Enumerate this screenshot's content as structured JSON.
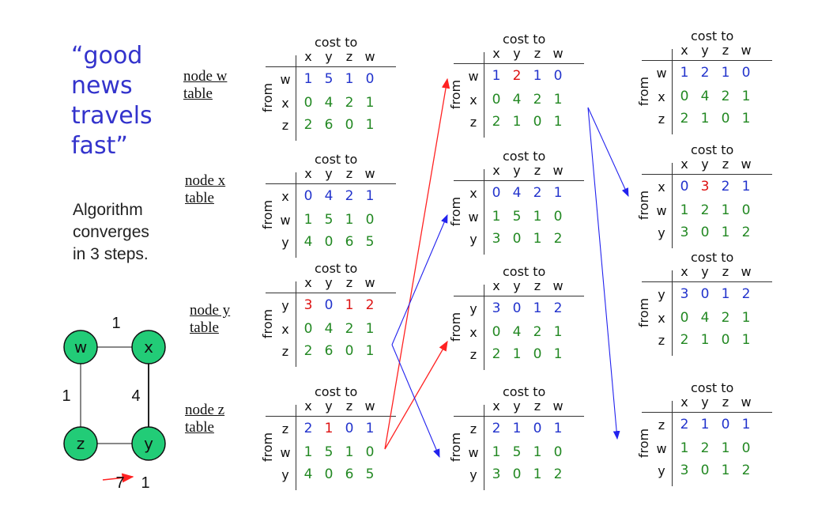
{
  "slogan": {
    "line1": "“good",
    "line2": "news",
    "line3": "travels",
    "line4": "fast”"
  },
  "converge": {
    "line1": "Algorithm",
    "line2": "converges",
    "line3": "in 3 steps."
  },
  "node_labels": {
    "w": {
      "l1": "node w",
      "l2": "table"
    },
    "x": {
      "l1": "node x",
      "l2": "table"
    },
    "y": {
      "l1": "node y",
      "l2": "table"
    },
    "z": {
      "l1": "node z",
      "l2": "table"
    }
  },
  "table_header": {
    "cost_to": "cost to",
    "from": "from",
    "cols": [
      "x",
      "y",
      "z",
      "w"
    ]
  },
  "colors": {
    "blue": "#2233cc",
    "green": "#228822",
    "red": "#dd1111",
    "arrow_red": "#ff2222",
    "arrow_blue": "#2222ee",
    "node_fill": "#22cc77"
  },
  "tables": [
    {
      "id": "t0w",
      "rows": [
        {
          "label": "w",
          "vals": [
            "1",
            "5",
            "1",
            "0"
          ],
          "colors": [
            "b",
            "b",
            "b",
            "b"
          ]
        },
        {
          "label": "x",
          "vals": [
            "0",
            "4",
            "2",
            "1"
          ],
          "colors": [
            "g",
            "g",
            "g",
            "g"
          ]
        },
        {
          "label": "z",
          "vals": [
            "2",
            "6",
            "0",
            "1"
          ],
          "colors": [
            "g",
            "g",
            "g",
            "g"
          ]
        }
      ]
    },
    {
      "id": "t0x",
      "rows": [
        {
          "label": "x",
          "vals": [
            "0",
            "4",
            "2",
            "1"
          ],
          "colors": [
            "b",
            "b",
            "b",
            "b"
          ]
        },
        {
          "label": "w",
          "vals": [
            "1",
            "5",
            "1",
            "0"
          ],
          "colors": [
            "g",
            "g",
            "g",
            "g"
          ]
        },
        {
          "label": "y",
          "vals": [
            "4",
            "0",
            "6",
            "5"
          ],
          "colors": [
            "g",
            "g",
            "g",
            "g"
          ]
        }
      ]
    },
    {
      "id": "t0y",
      "rows": [
        {
          "label": "y",
          "vals": [
            "3",
            "0",
            "1",
            "2"
          ],
          "colors": [
            "r",
            "b",
            "r",
            "r"
          ]
        },
        {
          "label": "x",
          "vals": [
            "0",
            "4",
            "2",
            "1"
          ],
          "colors": [
            "g",
            "g",
            "g",
            "g"
          ]
        },
        {
          "label": "z",
          "vals": [
            "2",
            "6",
            "0",
            "1"
          ],
          "colors": [
            "g",
            "g",
            "g",
            "g"
          ]
        }
      ]
    },
    {
      "id": "t0z",
      "rows": [
        {
          "label": "z",
          "vals": [
            "2",
            "1",
            "0",
            "1"
          ],
          "colors": [
            "b",
            "r",
            "b",
            "b"
          ]
        },
        {
          "label": "w",
          "vals": [
            "1",
            "5",
            "1",
            "0"
          ],
          "colors": [
            "g",
            "g",
            "g",
            "g"
          ]
        },
        {
          "label": "y",
          "vals": [
            "4",
            "0",
            "6",
            "5"
          ],
          "colors": [
            "g",
            "g",
            "g",
            "g"
          ]
        }
      ]
    },
    {
      "id": "t1w",
      "rows": [
        {
          "label": "w",
          "vals": [
            "1",
            "2",
            "1",
            "0"
          ],
          "colors": [
            "b",
            "r",
            "b",
            "b"
          ]
        },
        {
          "label": "x",
          "vals": [
            "0",
            "4",
            "2",
            "1"
          ],
          "colors": [
            "g",
            "g",
            "g",
            "g"
          ]
        },
        {
          "label": "z",
          "vals": [
            "2",
            "1",
            "0",
            "1"
          ],
          "colors": [
            "g",
            "g",
            "g",
            "g"
          ]
        }
      ]
    },
    {
      "id": "t1x",
      "rows": [
        {
          "label": "x",
          "vals": [
            "0",
            "4",
            "2",
            "1"
          ],
          "colors": [
            "b",
            "b",
            "b",
            "b"
          ]
        },
        {
          "label": "w",
          "vals": [
            "1",
            "5",
            "1",
            "0"
          ],
          "colors": [
            "g",
            "g",
            "g",
            "g"
          ]
        },
        {
          "label": "y",
          "vals": [
            "3",
            "0",
            "1",
            "2"
          ],
          "colors": [
            "g",
            "g",
            "g",
            "g"
          ]
        }
      ]
    },
    {
      "id": "t1y",
      "rows": [
        {
          "label": "y",
          "vals": [
            "3",
            "0",
            "1",
            "2"
          ],
          "colors": [
            "b",
            "b",
            "b",
            "b"
          ]
        },
        {
          "label": "x",
          "vals": [
            "0",
            "4",
            "2",
            "1"
          ],
          "colors": [
            "g",
            "g",
            "g",
            "g"
          ]
        },
        {
          "label": "z",
          "vals": [
            "2",
            "1",
            "0",
            "1"
          ],
          "colors": [
            "g",
            "g",
            "g",
            "g"
          ]
        }
      ]
    },
    {
      "id": "t1z",
      "rows": [
        {
          "label": "z",
          "vals": [
            "2",
            "1",
            "0",
            "1"
          ],
          "colors": [
            "b",
            "b",
            "b",
            "b"
          ]
        },
        {
          "label": "w",
          "vals": [
            "1",
            "5",
            "1",
            "0"
          ],
          "colors": [
            "g",
            "g",
            "g",
            "g"
          ]
        },
        {
          "label": "y",
          "vals": [
            "3",
            "0",
            "1",
            "2"
          ],
          "colors": [
            "g",
            "g",
            "g",
            "g"
          ]
        }
      ]
    },
    {
      "id": "t2w",
      "rows": [
        {
          "label": "w",
          "vals": [
            "1",
            "2",
            "1",
            "0"
          ],
          "colors": [
            "b",
            "b",
            "b",
            "b"
          ]
        },
        {
          "label": "x",
          "vals": [
            "0",
            "4",
            "2",
            "1"
          ],
          "colors": [
            "g",
            "g",
            "g",
            "g"
          ]
        },
        {
          "label": "z",
          "vals": [
            "2",
            "1",
            "0",
            "1"
          ],
          "colors": [
            "g",
            "g",
            "g",
            "g"
          ]
        }
      ]
    },
    {
      "id": "t2x",
      "rows": [
        {
          "label": "x",
          "vals": [
            "0",
            "3",
            "2",
            "1"
          ],
          "colors": [
            "b",
            "r",
            "b",
            "b"
          ]
        },
        {
          "label": "w",
          "vals": [
            "1",
            "2",
            "1",
            "0"
          ],
          "colors": [
            "g",
            "g",
            "g",
            "g"
          ]
        },
        {
          "label": "y",
          "vals": [
            "3",
            "0",
            "1",
            "2"
          ],
          "colors": [
            "g",
            "g",
            "g",
            "g"
          ]
        }
      ]
    },
    {
      "id": "t2y",
      "rows": [
        {
          "label": "y",
          "vals": [
            "3",
            "0",
            "1",
            "2"
          ],
          "colors": [
            "b",
            "b",
            "b",
            "b"
          ]
        },
        {
          "label": "x",
          "vals": [
            "0",
            "4",
            "2",
            "1"
          ],
          "colors": [
            "g",
            "g",
            "g",
            "g"
          ]
        },
        {
          "label": "z",
          "vals": [
            "2",
            "1",
            "0",
            "1"
          ],
          "colors": [
            "g",
            "g",
            "g",
            "g"
          ]
        }
      ]
    },
    {
      "id": "t2z",
      "rows": [
        {
          "label": "z",
          "vals": [
            "2",
            "1",
            "0",
            "1"
          ],
          "colors": [
            "b",
            "b",
            "b",
            "b"
          ]
        },
        {
          "label": "w",
          "vals": [
            "1",
            "2",
            "1",
            "0"
          ],
          "colors": [
            "g",
            "g",
            "g",
            "g"
          ]
        },
        {
          "label": "y",
          "vals": [
            "3",
            "0",
            "1",
            "2"
          ],
          "colors": [
            "g",
            "g",
            "g",
            "g"
          ]
        }
      ]
    }
  ],
  "graph": {
    "nodes": {
      "w": "w",
      "x": "x",
      "y": "y",
      "z": "z"
    },
    "edges": {
      "wx": "1",
      "wz": "1",
      "xy": "4",
      "zy": "1"
    },
    "change": {
      "old": "7",
      "new": "1"
    }
  }
}
